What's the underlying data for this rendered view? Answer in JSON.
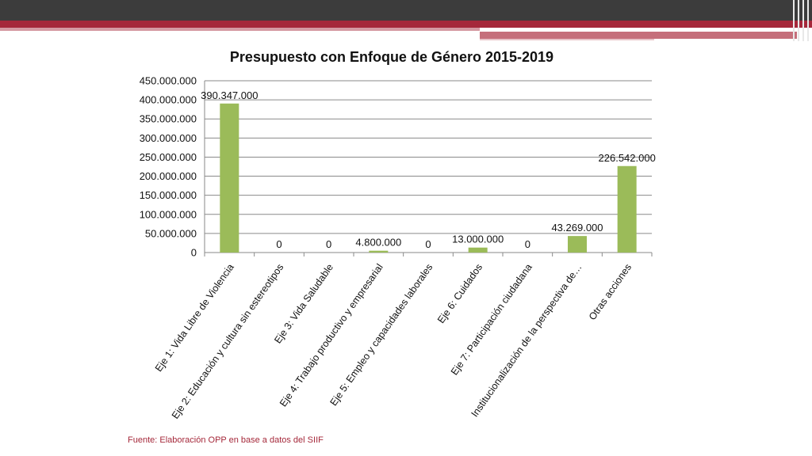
{
  "colors": {
    "bar": "#9bbb59",
    "grid": "#8a8a8a",
    "header_dark": "#3c3c3c",
    "header_red": "#a5283a",
    "source_text": "#a5283a"
  },
  "source_note": "Fuente: Elaboración OPP en base a datos del SIIF",
  "chart_data": {
    "type": "bar",
    "title": "Presupuesto con Enfoque de Género 2015-2019",
    "xlabel": "",
    "ylabel": "",
    "ylim": [
      0,
      450000000
    ],
    "grid": true,
    "legend": "none",
    "yticks": [
      0,
      50000000,
      100000000,
      150000000,
      200000000,
      250000000,
      300000000,
      350000000,
      400000000,
      450000000
    ],
    "ytick_labels": [
      "0",
      "50.000.000",
      "100.000.000",
      "150.000.000",
      "200.000.000",
      "250.000.000",
      "300.000.000",
      "350.000.000",
      "400.000.000",
      "450.000.000"
    ],
    "categories": [
      "Eje 1: Vida Libre de Violencia",
      "Eje 2: Educación y cultura sin estereotipos",
      "Eje 3: Vida Saludable",
      "Eje 4: Trabajo productivo y empresarial",
      "Eje 5: Empleo y capacidades laborales",
      "Eje 6: Cuidados",
      "Eje 7: Participación ciudadana",
      "Institucionalización de la perspectiva de…",
      "Otras acciones"
    ],
    "values": [
      390347000,
      0,
      0,
      4800000,
      0,
      13000000,
      0,
      43269000,
      226542000
    ],
    "data_labels": [
      "390.347.000",
      "0",
      "0",
      "4.800.000",
      "0",
      "13.000.000",
      "0",
      "43.269.000",
      "226.542.000"
    ]
  }
}
